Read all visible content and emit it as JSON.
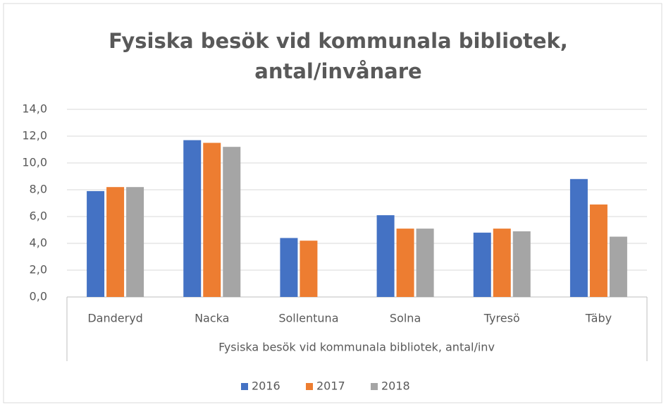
{
  "chart_data": {
    "type": "bar",
    "title": [
      "Fysiska besök vid kommunala bibliotek,",
      "antal/invånare"
    ],
    "x_label": "Fysiska besök vid kommunala bibliotek, antal/inv",
    "categories": [
      "Danderyd",
      "Nacka",
      "Sollentuna",
      "Solna",
      "Tyresö",
      "Täby"
    ],
    "series": [
      {
        "name": "2016",
        "color": "#4472c4",
        "values": [
          7.9,
          11.7,
          4.4,
          6.1,
          4.8,
          8.8
        ]
      },
      {
        "name": "2017",
        "color": "#ed7d31",
        "values": [
          8.2,
          11.5,
          4.2,
          5.1,
          5.1,
          6.9
        ]
      },
      {
        "name": "2018",
        "color": "#a5a5a5",
        "values": [
          8.2,
          11.2,
          null,
          5.1,
          4.9,
          4.5
        ]
      }
    ],
    "ylim": [
      0,
      14
    ],
    "yticks": [
      {
        "value": 0,
        "label": "0,0"
      },
      {
        "value": 2,
        "label": "2,0"
      },
      {
        "value": 4,
        "label": "4,0"
      },
      {
        "value": 6,
        "label": "6,0"
      },
      {
        "value": 8,
        "label": "8,0"
      },
      {
        "value": 10,
        "label": "10,0"
      },
      {
        "value": 12,
        "label": "12,0"
      },
      {
        "value": 14,
        "label": "14,0"
      }
    ],
    "grid": true,
    "legend": "bottom"
  }
}
